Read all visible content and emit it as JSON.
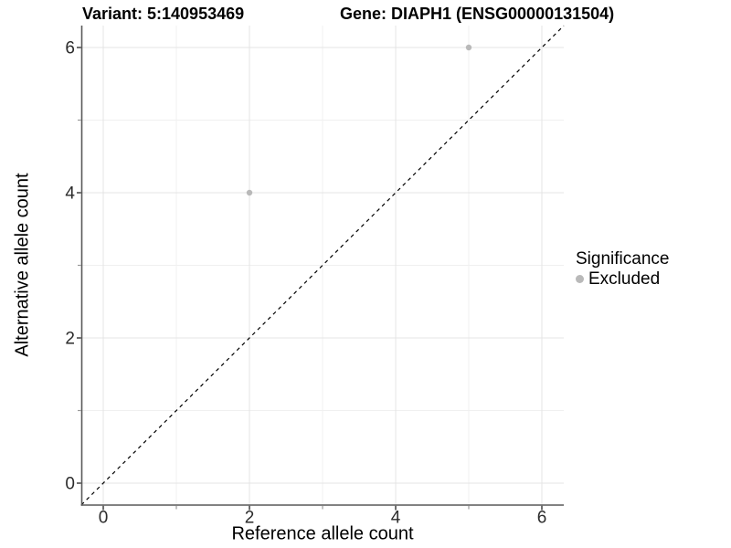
{
  "titles": {
    "variant": "Variant: 5:140953469",
    "gene": "Gene: DIAPH1 (ENSG00000131504)"
  },
  "legend": {
    "title": "Significance",
    "items": [
      {
        "label": "Excluded",
        "color": "#b9b9b9"
      }
    ]
  },
  "chart_data": {
    "type": "scatter",
    "title": "Variant: 5:140953469 | Gene: DIAPH1 (ENSG00000131504)",
    "xlabel": "Reference allele count",
    "ylabel": "Alternative allele count",
    "xlim": [
      -0.3,
      6.3
    ],
    "ylim": [
      -0.3,
      6.3
    ],
    "x_ticks": {
      "values": [
        0,
        2,
        4,
        6
      ],
      "labels": [
        "0",
        "2",
        "4",
        "6"
      ],
      "minor": [
        1,
        3,
        5
      ]
    },
    "y_ticks": {
      "values": [
        0,
        2,
        4,
        6
      ],
      "labels": [
        "0",
        "2",
        "4",
        "6"
      ],
      "minor": [
        1,
        3,
        5
      ]
    },
    "grid": {
      "x_major": [
        0,
        2,
        4,
        6
      ],
      "x_minor": [
        1,
        3,
        5
      ],
      "y_major": [
        0,
        2,
        4,
        6
      ],
      "y_minor": [
        1,
        3,
        5
      ],
      "major_color": "#e4e4e4",
      "minor_color": "#f0f0f0"
    },
    "reference_line": {
      "type": "identity",
      "style": "dashed",
      "color": "#000000",
      "from": [
        -0.3,
        -0.3
      ],
      "to": [
        6.3,
        6.3
      ]
    },
    "series": [
      {
        "name": "Excluded",
        "color": "#b9b9b9",
        "points": [
          [
            2,
            4
          ],
          [
            5,
            6
          ]
        ]
      }
    ],
    "legend_position": "right",
    "panel_background": "#ffffff",
    "axis_line_color": "#595959"
  }
}
